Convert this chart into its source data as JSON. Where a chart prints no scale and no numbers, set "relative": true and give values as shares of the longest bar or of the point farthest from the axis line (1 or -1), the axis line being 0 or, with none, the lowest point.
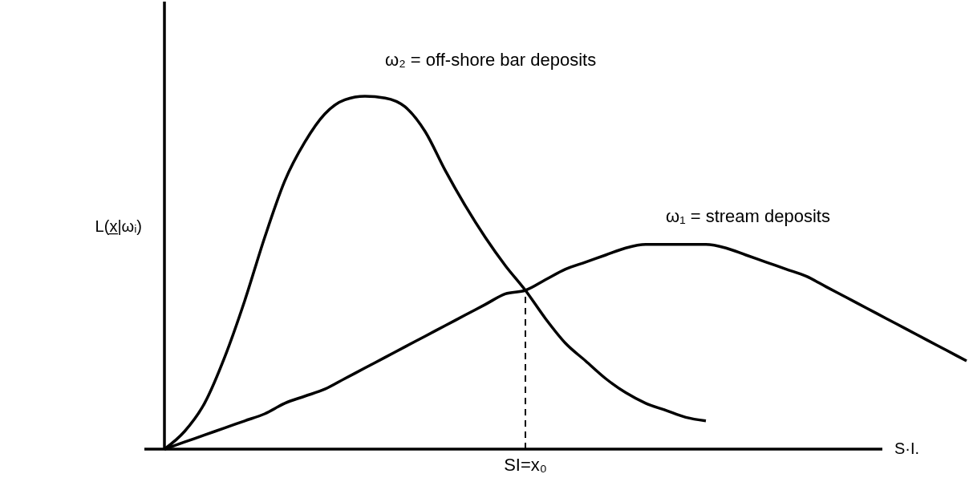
{
  "chart_data": {
    "type": "line",
    "relative": true,
    "xlabel": "S·I.",
    "ylabel": "L(x̲|ωᵢ)",
    "categories": [
      null,
      null,
      null,
      null,
      null,
      null,
      null,
      null,
      null,
      null,
      null,
      null,
      null,
      null,
      null,
      null,
      null,
      null,
      null,
      null,
      null,
      null,
      null,
      null,
      null,
      null,
      null,
      null,
      null,
      null,
      null,
      null,
      null,
      null,
      null,
      null,
      null,
      null,
      null,
      null,
      null
    ],
    "series": [
      {
        "name": "ω₂ = off-shore bar deposits",
        "color": "#000000",
        "values": [
          0,
          0.05,
          0.13,
          0.26,
          0.42,
          0.6,
          0.76,
          0.87,
          0.95,
          0.99,
          1.0,
          0.995,
          0.97,
          0.9,
          0.79,
          0.69,
          0.6,
          0.52,
          0.45,
          0.37,
          0.3,
          0.25,
          0.2,
          0.16,
          0.13,
          0.11,
          0.09,
          0.08,
          null,
          null,
          null,
          null,
          null,
          null,
          null,
          null,
          null,
          null,
          null,
          null,
          null
        ]
      },
      {
        "name": "ω₁ = stream deposits",
        "color": "#000000",
        "values": [
          0,
          0.02,
          0.04,
          0.06,
          0.08,
          0.1,
          0.13,
          0.15,
          0.17,
          0.2,
          0.23,
          0.26,
          0.29,
          0.32,
          0.35,
          0.38,
          0.41,
          0.44,
          0.45,
          0.48,
          0.51,
          0.53,
          0.55,
          0.57,
          0.58,
          0.58,
          0.58,
          0.58,
          0.57,
          0.55,
          0.53,
          0.51,
          0.49,
          0.46,
          0.43,
          0.4,
          0.37,
          0.34,
          0.31,
          0.28,
          0.25
        ]
      }
    ],
    "annotations": [
      "SI=x₀"
    ],
    "line_style": "solid",
    "marker": "none"
  }
}
